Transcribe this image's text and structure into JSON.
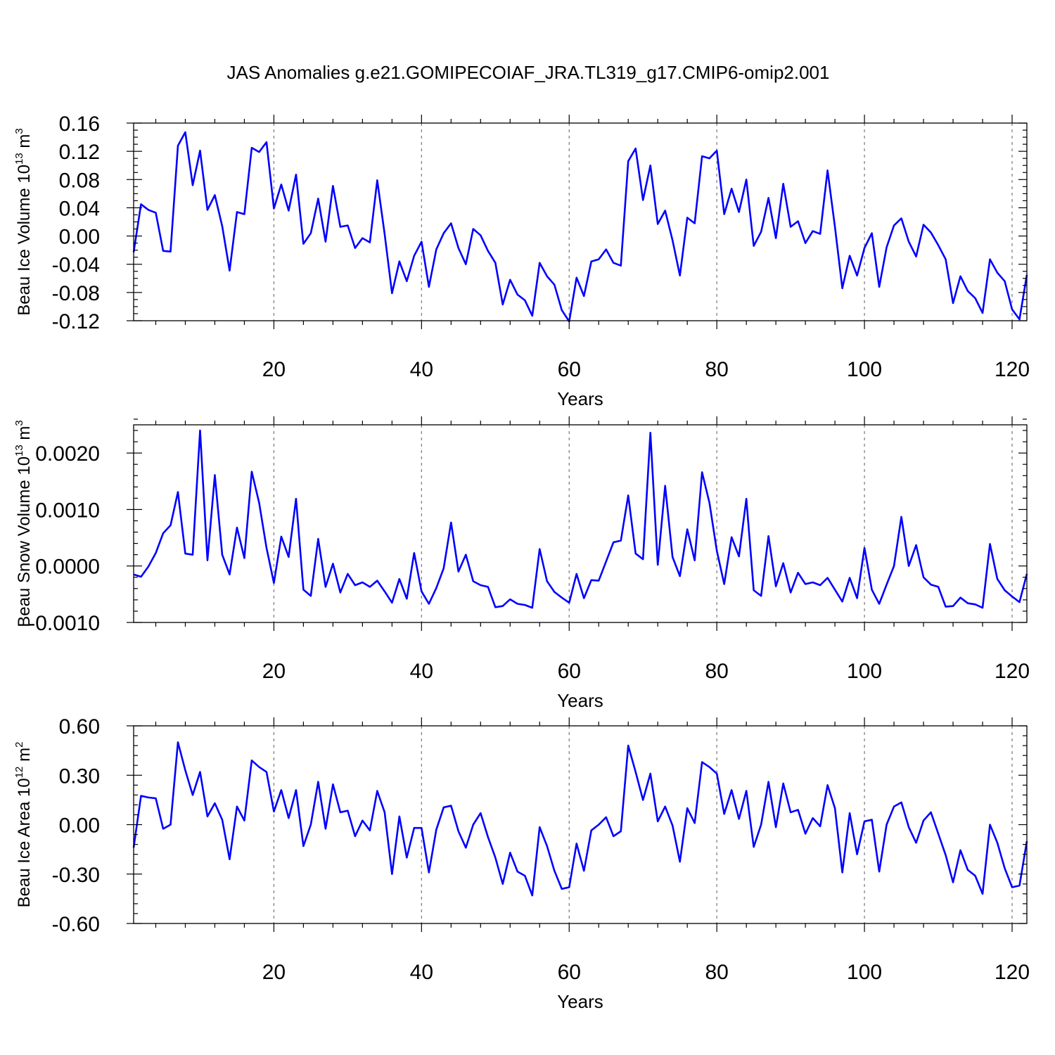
{
  "title": "JAS Anomalies g.e21.GOMIPECOIAF_JRA.TL319_g17.CMIP6-omip2.001",
  "colors": {
    "series": "#0000ff",
    "grid": "#777777",
    "axes": "#000000"
  },
  "chart_data": [
    {
      "type": "line",
      "ylabel": {
        "text": "Beau Ice Volume 10",
        "sup": "13",
        "unit": " m",
        "unit_sup": "3"
      },
      "xlabel": "Years",
      "xlim": [
        1,
        122
      ],
      "ylim": [
        -0.12,
        0.16
      ],
      "yticks": [
        0.16,
        0.12,
        0.08,
        0.04,
        0.0,
        -0.04,
        -0.08,
        -0.12
      ],
      "ytick_labels": [
        "0.16",
        "0.12",
        "0.08",
        "0.04",
        "0.00",
        "-0.04",
        "-0.08",
        "-0.12"
      ],
      "yminor_step": 0.01,
      "xticks": [
        20,
        40,
        60,
        80,
        100,
        120
      ],
      "xtick_labels": [
        "20",
        "40",
        "60",
        "80",
        "100",
        "120"
      ],
      "xminor_step": 4,
      "grid_x": [
        20,
        40,
        60,
        80,
        100,
        120
      ],
      "x_start": 1,
      "values": [
        -0.023,
        0.045,
        0.037,
        0.033,
        -0.021,
        -0.022,
        0.128,
        0.147,
        0.072,
        0.121,
        0.037,
        0.058,
        0.014,
        -0.049,
        0.034,
        0.031,
        0.125,
        0.119,
        0.133,
        0.039,
        0.073,
        0.036,
        0.087,
        -0.011,
        0.004,
        0.053,
        -0.008,
        0.071,
        0.013,
        0.015,
        -0.017,
        -0.003,
        -0.009,
        0.079,
        0.003,
        -0.081,
        -0.036,
        -0.064,
        -0.028,
        -0.008,
        -0.072,
        -0.019,
        0.004,
        0.018,
        -0.017,
        -0.04,
        0.01,
        0.001,
        -0.021,
        -0.038,
        -0.097,
        -0.062,
        -0.083,
        -0.091,
        -0.113,
        -0.038,
        -0.057,
        -0.069,
        -0.105,
        -0.121,
        -0.059,
        -0.085,
        -0.036,
        -0.033,
        -0.019,
        -0.038,
        -0.042,
        0.106,
        0.124,
        0.051,
        0.1,
        0.017,
        0.036,
        -0.006,
        -0.056,
        0.026,
        0.018,
        0.113,
        0.11,
        0.121,
        0.031,
        0.067,
        0.034,
        0.08,
        -0.014,
        0.006,
        0.054,
        -0.003,
        0.074,
        0.013,
        0.021,
        -0.01,
        0.007,
        0.003,
        0.093,
        0.013,
        -0.074,
        -0.028,
        -0.056,
        -0.017,
        0.004,
        -0.072,
        -0.016,
        0.015,
        0.025,
        -0.008,
        -0.029,
        0.016,
        0.005,
        -0.013,
        -0.033,
        -0.095,
        -0.057,
        -0.078,
        -0.088,
        -0.109,
        -0.033,
        -0.052,
        -0.064,
        -0.104,
        -0.118,
        -0.055
      ]
    },
    {
      "type": "line",
      "ylabel": {
        "text": "Beau Snow Volume 10",
        "sup": "13",
        "unit": " m",
        "unit_sup": "3"
      },
      "xlabel": "Years",
      "xlim": [
        1,
        122
      ],
      "ylim": [
        -0.001,
        0.0025
      ],
      "yticks": [
        0.002,
        0.001,
        0.0,
        -0.001
      ],
      "ytick_labels": [
        "0.0020",
        "0.0010",
        "0.0000",
        "-0.0010"
      ],
      "yminor_step": 0.0002,
      "xticks": [
        20,
        40,
        60,
        80,
        100,
        120
      ],
      "xtick_labels": [
        "20",
        "40",
        "60",
        "80",
        "100",
        "120"
      ],
      "xminor_step": 4,
      "grid_x": [
        20,
        40,
        60,
        80,
        100,
        120
      ],
      "x_start": 1,
      "values": [
        -0.00015,
        -0.00019,
        -1e-05,
        0.00023,
        0.00058,
        0.00072,
        0.00131,
        0.00022,
        0.0002,
        0.0024,
        0.0001,
        0.00161,
        0.0002,
        -0.00015,
        0.00068,
        0.00014,
        0.00167,
        0.00112,
        0.00032,
        -0.0003,
        0.00052,
        0.00016,
        0.00119,
        -0.00042,
        -0.00053,
        0.00048,
        -0.00037,
        4e-05,
        -0.00047,
        -0.00014,
        -0.00034,
        -0.00029,
        -0.00037,
        -0.00026,
        -0.00045,
        -0.00065,
        -0.00023,
        -0.00058,
        0.00023,
        -0.00045,
        -0.00067,
        -0.00039,
        -4e-05,
        0.00077,
        -0.0001,
        0.0002,
        -0.00027,
        -0.00034,
        -0.00037,
        -0.00073,
        -0.00071,
        -0.00059,
        -0.00067,
        -0.00069,
        -0.00074,
        0.0003,
        -0.00027,
        -0.00046,
        -0.00056,
        -0.00065,
        -0.00014,
        -0.00057,
        -0.00025,
        -0.00026,
        8e-05,
        0.00042,
        0.00045,
        0.00125,
        0.00022,
        0.00012,
        0.00236,
        2e-05,
        0.00142,
        0.00016,
        -0.00018,
        0.00065,
        0.0001,
        0.00166,
        0.00112,
        0.00027,
        -0.00032,
        0.00051,
        0.00017,
        0.00119,
        -0.00043,
        -0.00053,
        0.00053,
        -0.00036,
        5e-05,
        -0.00047,
        -0.00012,
        -0.00032,
        -0.00029,
        -0.00034,
        -0.00021,
        -0.00042,
        -0.00063,
        -0.00021,
        -0.00057,
        0.00032,
        -0.00042,
        -0.00067,
        -0.00033,
        0.0,
        0.00087,
        0.0,
        0.00037,
        -0.0002,
        -0.00033,
        -0.00037,
        -0.00072,
        -0.00071,
        -0.00056,
        -0.00066,
        -0.00068,
        -0.00074,
        0.00039,
        -0.00023,
        -0.00043,
        -0.00054,
        -0.00064,
        -0.00014
      ]
    },
    {
      "type": "line",
      "ylabel": {
        "text": "Beau Ice Area 10",
        "sup": "12",
        "unit": " m",
        "unit_sup": "2"
      },
      "xlabel": "Years",
      "xlim": [
        1,
        122
      ],
      "ylim": [
        -0.6,
        0.6
      ],
      "yticks": [
        0.6,
        0.3,
        0.0,
        -0.3,
        -0.6
      ],
      "ytick_labels": [
        "0.60",
        "0.30",
        "0.00",
        "-0.30",
        "-0.60"
      ],
      "yminor_step": 0.06,
      "xticks": [
        20,
        40,
        60,
        80,
        100,
        120
      ],
      "xtick_labels": [
        "20",
        "40",
        "60",
        "80",
        "100",
        "120"
      ],
      "xminor_step": 4,
      "grid_x": [
        20,
        40,
        60,
        80,
        100,
        120
      ],
      "x_start": 1,
      "values": [
        -0.14,
        0.175,
        0.165,
        0.16,
        -0.025,
        0.0,
        0.5,
        0.33,
        0.18,
        0.32,
        0.05,
        0.13,
        0.03,
        -0.21,
        0.11,
        0.025,
        0.39,
        0.35,
        0.32,
        0.08,
        0.21,
        0.04,
        0.21,
        -0.13,
        0.0,
        0.26,
        -0.025,
        0.245,
        0.075,
        0.085,
        -0.07,
        0.025,
        -0.035,
        0.205,
        0.075,
        -0.3,
        0.05,
        -0.2,
        -0.02,
        -0.02,
        -0.29,
        -0.03,
        0.105,
        0.115,
        -0.04,
        -0.14,
        0.0,
        0.07,
        -0.075,
        -0.2,
        -0.36,
        -0.17,
        -0.285,
        -0.31,
        -0.43,
        -0.015,
        -0.13,
        -0.28,
        -0.39,
        -0.38,
        -0.115,
        -0.28,
        -0.035,
        0.0,
        0.045,
        -0.07,
        -0.04,
        0.48,
        0.32,
        0.15,
        0.31,
        0.02,
        0.11,
        -0.005,
        -0.225,
        0.1,
        0.01,
        0.38,
        0.35,
        0.31,
        0.065,
        0.21,
        0.035,
        0.205,
        -0.135,
        0.0,
        0.26,
        -0.015,
        0.25,
        0.075,
        0.09,
        -0.055,
        0.04,
        -0.01,
        0.24,
        0.1,
        -0.29,
        0.07,
        -0.18,
        0.02,
        0.03,
        -0.285,
        0.0,
        0.11,
        0.135,
        -0.015,
        -0.11,
        0.025,
        0.075,
        -0.055,
        -0.185,
        -0.35,
        -0.155,
        -0.275,
        -0.31,
        -0.42,
        0.0,
        -0.11,
        -0.265,
        -0.38,
        -0.37,
        -0.1
      ]
    }
  ]
}
